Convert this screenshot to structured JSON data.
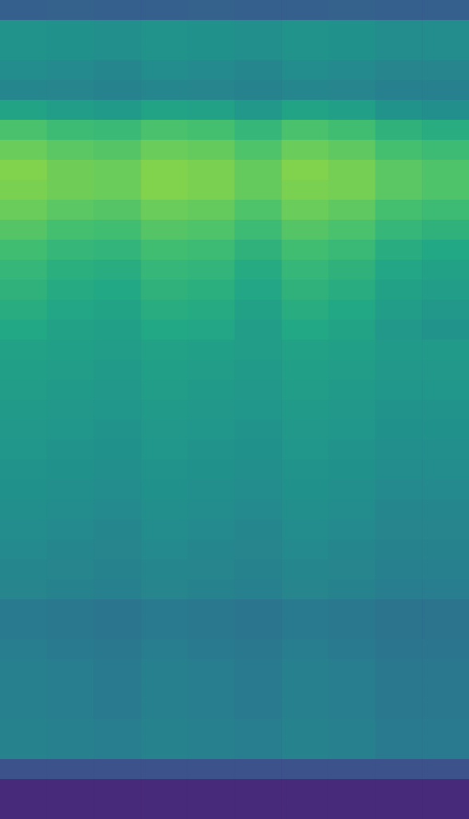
{
  "chart_data": {
    "type": "heatmap",
    "tick_labels": false,
    "zlim": [
      0,
      1
    ],
    "cells": [
      [
        0.3,
        0.31,
        0.3,
        0.3,
        0.31,
        0.3,
        0.3,
        0.31,
        0.3,
        0.3
      ],
      [
        0.51,
        0.5,
        0.49,
        0.51,
        0.5,
        0.49,
        0.51,
        0.5,
        0.48,
        0.48
      ],
      [
        0.51,
        0.5,
        0.49,
        0.51,
        0.5,
        0.49,
        0.51,
        0.5,
        0.48,
        0.48
      ],
      [
        0.48,
        0.47,
        0.46,
        0.48,
        0.47,
        0.46,
        0.48,
        0.47,
        0.45,
        0.45
      ],
      [
        0.46,
        0.45,
        0.44,
        0.46,
        0.45,
        0.44,
        0.46,
        0.45,
        0.43,
        0.43
      ],
      [
        0.58,
        0.55,
        0.54,
        0.58,
        0.57,
        0.53,
        0.58,
        0.56,
        0.51,
        0.49
      ],
      [
        0.71,
        0.68,
        0.67,
        0.71,
        0.7,
        0.66,
        0.71,
        0.69,
        0.64,
        0.62
      ],
      [
        0.77,
        0.74,
        0.73,
        0.77,
        0.76,
        0.72,
        0.77,
        0.75,
        0.7,
        0.68
      ],
      [
        0.81,
        0.78,
        0.77,
        0.81,
        0.8,
        0.76,
        0.81,
        0.79,
        0.74,
        0.72
      ],
      [
        0.8,
        0.78,
        0.77,
        0.81,
        0.8,
        0.76,
        0.8,
        0.79,
        0.74,
        0.72
      ],
      [
        0.77,
        0.74,
        0.73,
        0.77,
        0.76,
        0.72,
        0.77,
        0.75,
        0.7,
        0.68
      ],
      [
        0.73,
        0.7,
        0.69,
        0.73,
        0.72,
        0.68,
        0.73,
        0.71,
        0.66,
        0.64
      ],
      [
        0.69,
        0.66,
        0.65,
        0.69,
        0.68,
        0.64,
        0.69,
        0.67,
        0.62,
        0.6
      ],
      [
        0.66,
        0.63,
        0.62,
        0.66,
        0.65,
        0.61,
        0.66,
        0.64,
        0.59,
        0.57
      ],
      [
        0.64,
        0.61,
        0.6,
        0.64,
        0.63,
        0.59,
        0.64,
        0.62,
        0.57,
        0.55
      ],
      [
        0.62,
        0.59,
        0.58,
        0.62,
        0.61,
        0.57,
        0.62,
        0.6,
        0.55,
        0.53
      ],
      [
        0.6,
        0.57,
        0.56,
        0.6,
        0.59,
        0.55,
        0.6,
        0.58,
        0.53,
        0.51
      ],
      [
        0.57,
        0.56,
        0.55,
        0.57,
        0.56,
        0.55,
        0.57,
        0.56,
        0.54,
        0.54
      ],
      [
        0.56,
        0.55,
        0.54,
        0.56,
        0.55,
        0.54,
        0.56,
        0.55,
        0.53,
        0.53
      ],
      [
        0.55,
        0.54,
        0.53,
        0.55,
        0.54,
        0.53,
        0.55,
        0.54,
        0.52,
        0.52
      ],
      [
        0.54,
        0.53,
        0.52,
        0.54,
        0.53,
        0.52,
        0.54,
        0.53,
        0.51,
        0.51
      ],
      [
        0.53,
        0.52,
        0.51,
        0.53,
        0.52,
        0.51,
        0.53,
        0.52,
        0.5,
        0.5
      ],
      [
        0.52,
        0.51,
        0.5,
        0.52,
        0.51,
        0.5,
        0.52,
        0.51,
        0.49,
        0.49
      ],
      [
        0.51,
        0.5,
        0.49,
        0.51,
        0.5,
        0.49,
        0.51,
        0.5,
        0.48,
        0.48
      ],
      [
        0.5,
        0.49,
        0.48,
        0.5,
        0.49,
        0.48,
        0.5,
        0.49,
        0.47,
        0.47
      ],
      [
        0.49,
        0.48,
        0.47,
        0.49,
        0.48,
        0.47,
        0.49,
        0.48,
        0.46,
        0.46
      ],
      [
        0.48,
        0.47,
        0.46,
        0.48,
        0.47,
        0.46,
        0.48,
        0.47,
        0.45,
        0.45
      ],
      [
        0.47,
        0.46,
        0.45,
        0.47,
        0.46,
        0.45,
        0.47,
        0.46,
        0.44,
        0.44
      ],
      [
        0.46,
        0.45,
        0.44,
        0.46,
        0.45,
        0.44,
        0.46,
        0.45,
        0.43,
        0.43
      ],
      [
        0.45,
        0.44,
        0.43,
        0.45,
        0.44,
        0.43,
        0.45,
        0.44,
        0.42,
        0.42
      ],
      [
        0.41,
        0.4,
        0.39,
        0.41,
        0.4,
        0.39,
        0.41,
        0.4,
        0.38,
        0.38
      ],
      [
        0.41,
        0.4,
        0.39,
        0.41,
        0.4,
        0.39,
        0.41,
        0.4,
        0.38,
        0.38
      ],
      [
        0.42,
        0.41,
        0.4,
        0.42,
        0.41,
        0.4,
        0.42,
        0.41,
        0.39,
        0.39
      ],
      [
        0.43,
        0.42,
        0.41,
        0.43,
        0.42,
        0.41,
        0.43,
        0.42,
        0.4,
        0.4
      ],
      [
        0.43,
        0.42,
        0.41,
        0.43,
        0.42,
        0.41,
        0.43,
        0.42,
        0.4,
        0.4
      ],
      [
        0.43,
        0.42,
        0.41,
        0.43,
        0.42,
        0.41,
        0.43,
        0.42,
        0.4,
        0.4
      ],
      [
        0.44,
        0.43,
        0.42,
        0.44,
        0.43,
        0.42,
        0.44,
        0.43,
        0.41,
        0.41
      ],
      [
        0.44,
        0.43,
        0.42,
        0.44,
        0.43,
        0.42,
        0.44,
        0.43,
        0.41,
        0.41
      ],
      [
        0.25,
        0.25,
        0.25,
        0.25,
        0.25,
        0.25,
        0.25,
        0.25,
        0.25,
        0.25
      ],
      [
        0.12,
        0.12,
        0.12,
        0.12,
        0.12,
        0.12,
        0.12,
        0.12,
        0.12,
        0.12
      ],
      [
        0.12,
        0.12,
        0.12,
        0.12,
        0.12,
        0.12,
        0.12,
        0.12,
        0.12,
        0.12
      ]
    ]
  }
}
